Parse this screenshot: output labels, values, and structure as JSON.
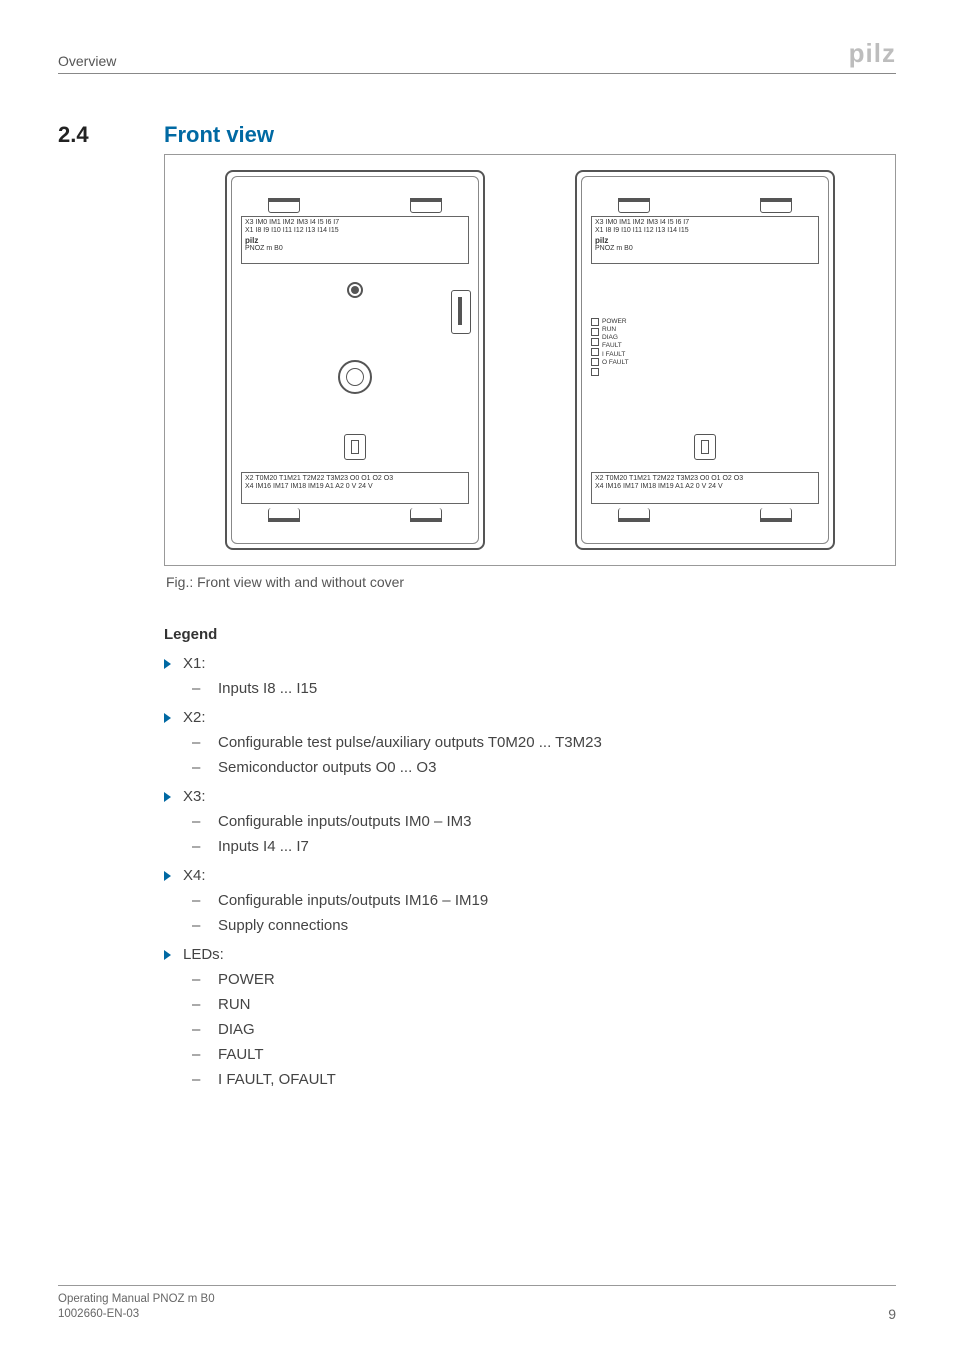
{
  "header": {
    "breadcrumb": "Overview",
    "logo": "pilz"
  },
  "section": {
    "number": "2.4",
    "title": "Front view"
  },
  "figure": {
    "caption": "Fig.: Front view with and without cover",
    "labels": {
      "x3": "X3  IM0 IM1  IM2  IM3 I4     I5    I6     I7",
      "x1": "X1   I8    I9     I10  I11  I12  I13  I14   I15",
      "brand": "pilz",
      "model": "PNOZ m B0",
      "x2": "X2  T0M20 T1M21  T2M22  T3M23 O0    O1   O2   O3",
      "x4": "X4  IM16 IM17 IM18 IM19 A1    A2   0 V  24 V",
      "leds": [
        "POWER",
        "RUN",
        "DIAG",
        "FAULT",
        "I FAULT",
        "O FAULT"
      ]
    }
  },
  "legend": {
    "title": "Legend",
    "items": [
      {
        "label": "X1:",
        "sub": [
          "Inputs I8 ... I15"
        ]
      },
      {
        "label": "X2:",
        "sub": [
          "Configurable test pulse/auxiliary outputs T0M20 ... T3M23",
          "Semiconductor outputs O0 ... O3"
        ]
      },
      {
        "label": "X3:",
        "sub": [
          "Configurable inputs/outputs IM0 – IM3",
          "Inputs I4 ... I7"
        ]
      },
      {
        "label": "X4:",
        "sub": [
          "Configurable inputs/outputs IM16 – IM19",
          "Supply connections"
        ]
      },
      {
        "label": "LEDs:",
        "sub": [
          "POWER",
          "RUN",
          "DIAG",
          "FAULT",
          "I FAULT, OFAULT"
        ]
      }
    ]
  },
  "footer": {
    "line1": "Operating Manual PNOZ m B0",
    "line2": "1002660-EN-03",
    "page": "9"
  },
  "colors": {
    "accent": "#0069a3",
    "text": "#333333",
    "muted": "#666666",
    "rule": "#999999",
    "logo_gray": "#bdbdbd"
  }
}
